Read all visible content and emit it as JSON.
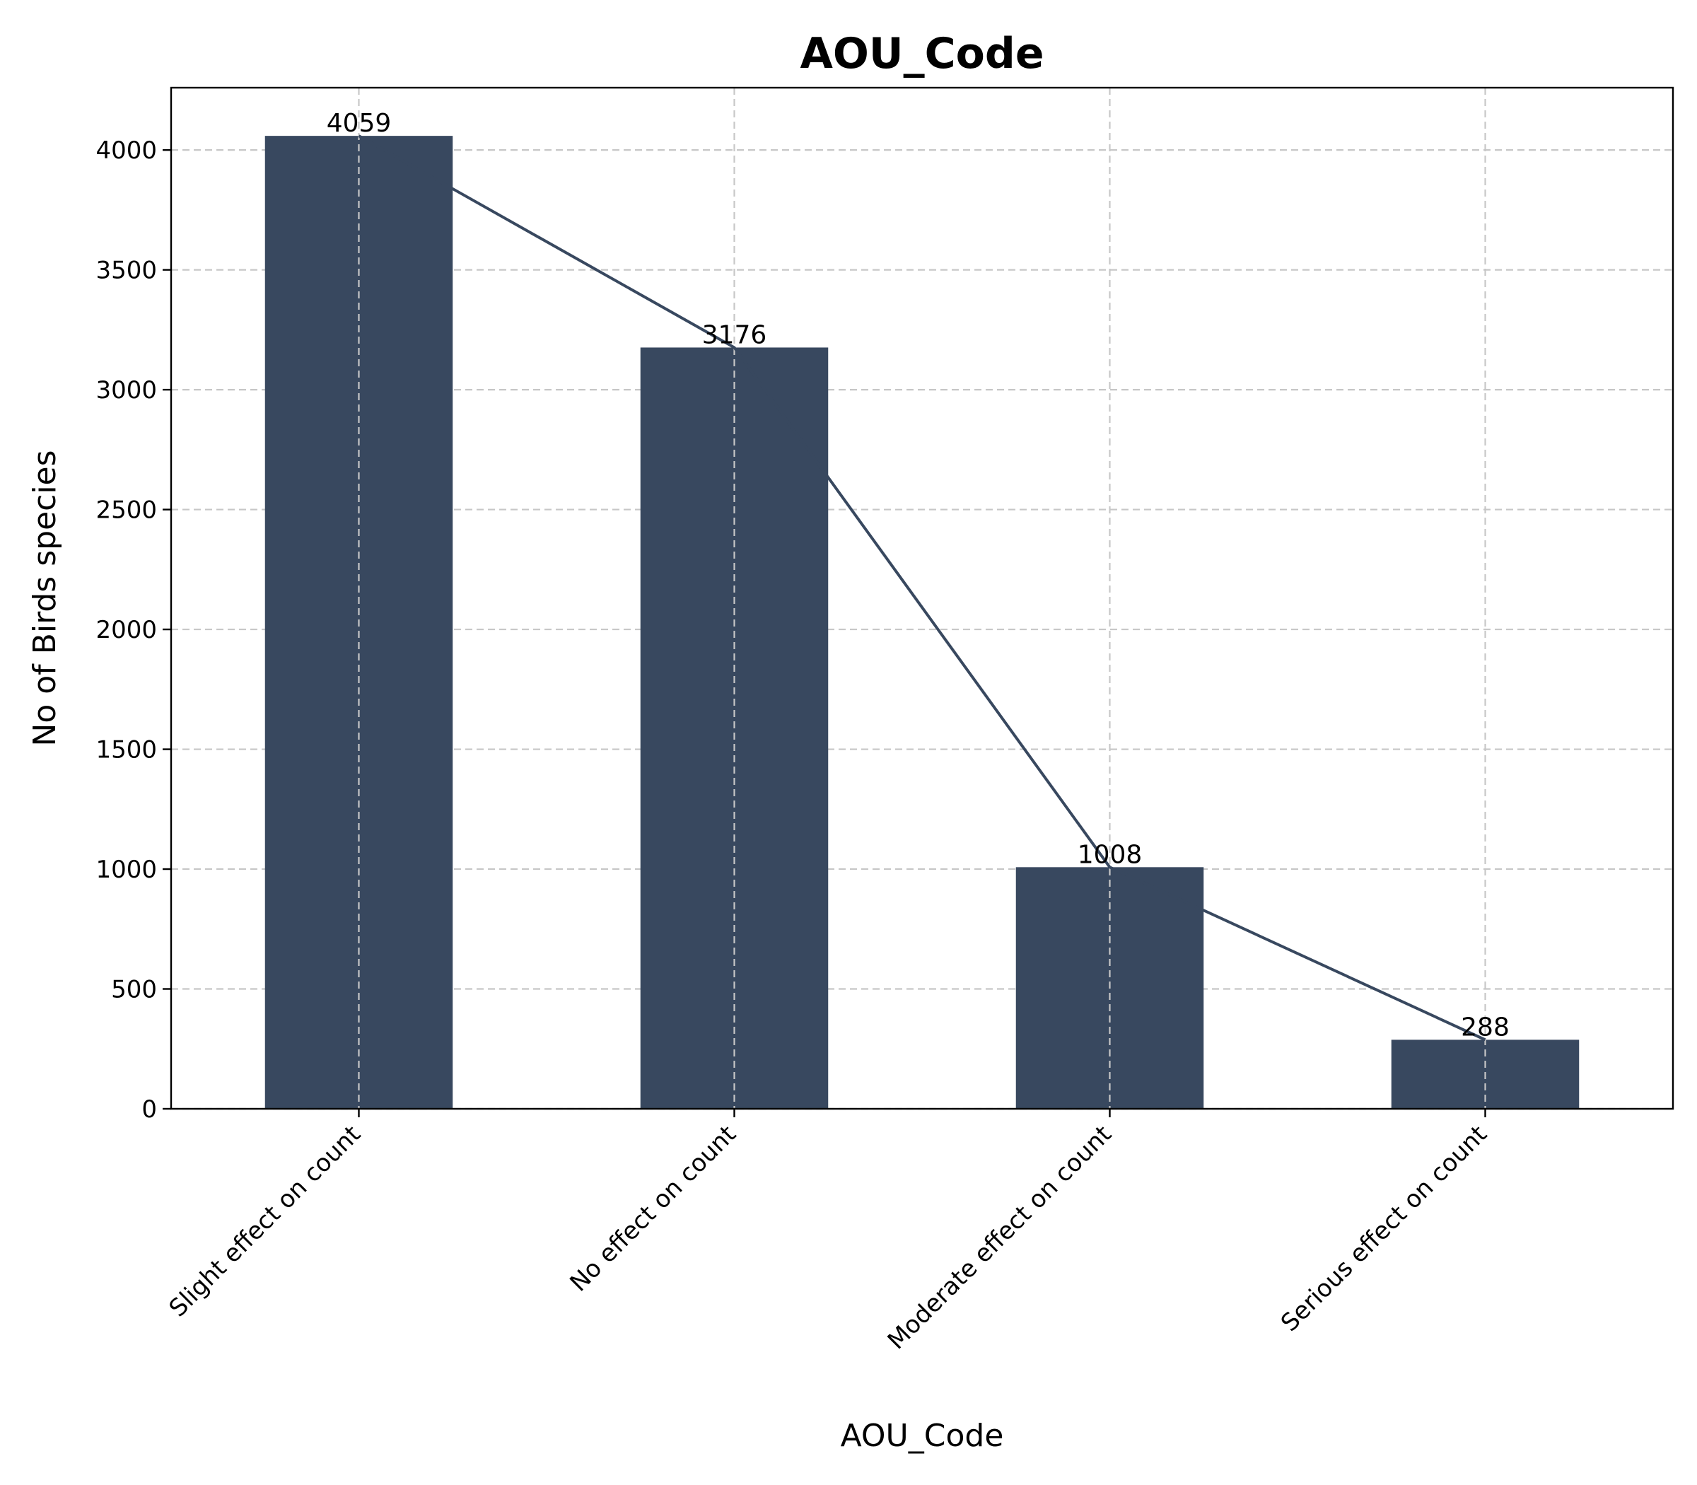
{
  "chart_data": {
    "type": "bar",
    "title": "AOU_Code",
    "xlabel": "AOU_Code",
    "ylabel": "No of Birds species",
    "categories": [
      "Slight effect on count",
      "No effect on count",
      "Moderate effect on count",
      "Serious effect on count"
    ],
    "values": [
      4059,
      3176,
      1008,
      288
    ],
    "value_labels": [
      "4059",
      "3176",
      "1008",
      "288"
    ],
    "ylim": [
      0,
      4260
    ],
    "yticks": [
      0,
      500,
      1000,
      1500,
      2000,
      2500,
      3000,
      3500,
      4000
    ],
    "ytick_labels": [
      "0",
      "500",
      "1000",
      "1500",
      "2000",
      "2500",
      "3000",
      "3500",
      "4000"
    ],
    "overlay_line": true,
    "grid": true,
    "bar_color": "#38485f",
    "line_color": "#38485f"
  }
}
